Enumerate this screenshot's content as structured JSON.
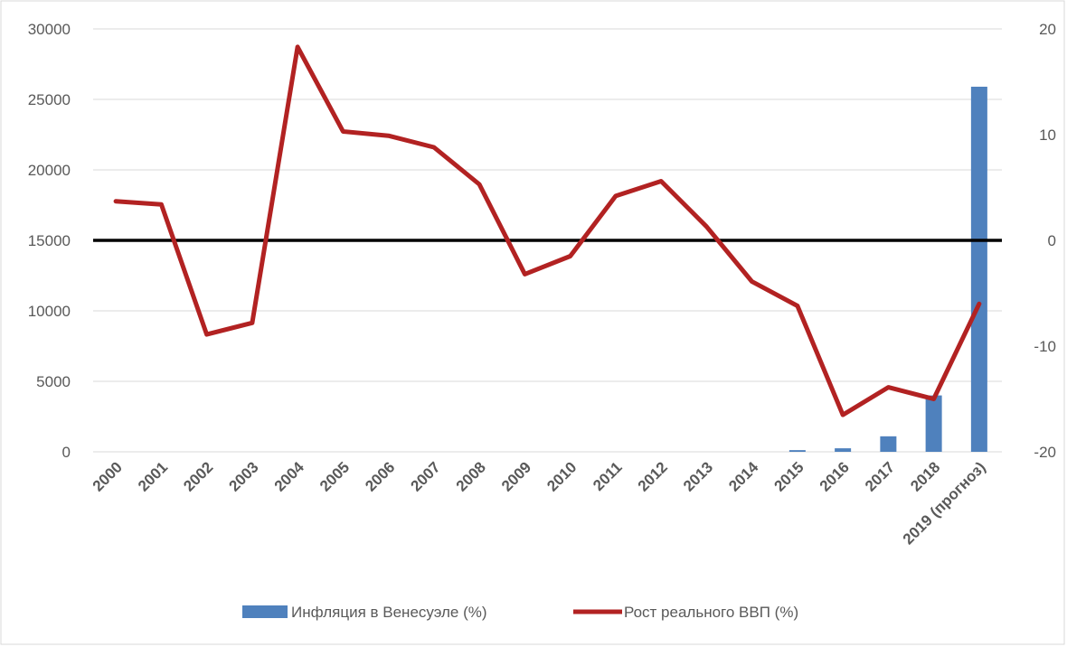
{
  "chart_data": {
    "type": "bar+line",
    "categories": [
      "2000",
      "2001",
      "2002",
      "2003",
      "2004",
      "2005",
      "2006",
      "2007",
      "2008",
      "2009",
      "2010",
      "2011",
      "2012",
      "2013",
      "2014",
      "2015",
      "2016",
      "2017",
      "2018",
      "2019 (прогноз)"
    ],
    "series": [
      {
        "name": "Инфляция в Венесуэле (%)",
        "type": "bar",
        "axis": "left",
        "color": "#4f81bd",
        "values": [
          0,
          0,
          0,
          0,
          0,
          0,
          0,
          0,
          0,
          0,
          0,
          0,
          0,
          0,
          0,
          120,
          250,
          1100,
          4000,
          25900
        ]
      },
      {
        "name": "Рост реального ВВП (%)",
        "type": "line",
        "axis": "right",
        "color": "#b22222",
        "values": [
          3.7,
          3.4,
          -8.9,
          -7.8,
          18.3,
          10.3,
          9.9,
          8.8,
          5.3,
          -3.2,
          -1.5,
          4.2,
          5.6,
          1.3,
          -3.9,
          -6.2,
          -16.5,
          -13.9,
          -15.0,
          -6.0
        ]
      }
    ],
    "reference_line": {
      "axis": "right",
      "value": 0,
      "color": "#000000"
    },
    "y_left": {
      "ylim": [
        0,
        30000
      ],
      "ticks": [
        "0",
        "5000",
        "10000",
        "15000",
        "20000",
        "25000",
        "30000"
      ]
    },
    "y_right": {
      "ylim": [
        -20,
        20
      ],
      "ticks": [
        "-20",
        "-10",
        "0",
        "10",
        "20"
      ]
    },
    "grid": true,
    "legend_position": "bottom"
  }
}
